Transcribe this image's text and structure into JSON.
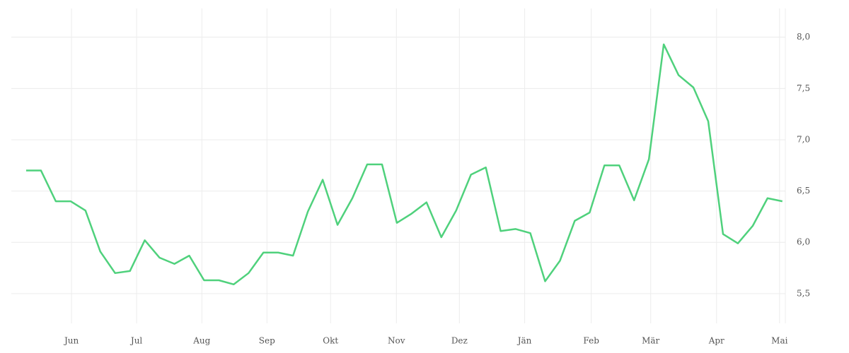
{
  "chart_data": {
    "type": "line",
    "x": [
      0,
      1,
      2,
      3,
      4,
      5,
      6,
      7,
      8,
      9,
      10,
      11,
      12,
      13,
      14,
      15,
      16,
      17,
      18,
      19,
      20,
      21,
      22,
      23,
      24,
      25,
      26,
      27,
      28,
      29,
      30,
      31,
      32,
      33,
      34,
      35,
      36,
      37,
      38,
      39,
      40,
      41,
      42,
      43,
      44,
      45,
      46,
      47,
      48,
      49,
      50,
      51
    ],
    "series": [
      {
        "color": "#4fd17c",
        "values": [
          6.7,
          6.7,
          6.4,
          6.4,
          6.31,
          5.91,
          5.7,
          5.72,
          6.02,
          5.85,
          5.79,
          5.87,
          5.63,
          5.63,
          5.59,
          5.7,
          5.9,
          5.9,
          5.87,
          6.3,
          6.61,
          6.17,
          6.43,
          6.76,
          6.76,
          6.19,
          6.28,
          6.39,
          6.05,
          6.31,
          6.66,
          6.73,
          6.11,
          6.13,
          6.09,
          5.62,
          5.82,
          6.21,
          6.29,
          6.75,
          6.75,
          6.41,
          6.81,
          7.93,
          7.63,
          7.51,
          7.18,
          6.08,
          5.99,
          6.16,
          6.43,
          6.4
        ]
      }
    ],
    "xlim": [
      -1.0,
      51.2
    ],
    "xticks": [
      {
        "value": 3.06,
        "label": "Jun"
      },
      {
        "value": 7.45,
        "label": "Jul"
      },
      {
        "value": 11.85,
        "label": "Aug"
      },
      {
        "value": 16.24,
        "label": "Sep"
      },
      {
        "value": 20.53,
        "label": "Okt"
      },
      {
        "value": 24.97,
        "label": "Nov"
      },
      {
        "value": 29.22,
        "label": "Dez"
      },
      {
        "value": 33.62,
        "label": "Jän"
      },
      {
        "value": 38.11,
        "label": "Feb"
      },
      {
        "value": 42.12,
        "label": "Mär"
      },
      {
        "value": 46.56,
        "label": "Apr"
      },
      {
        "value": 50.81,
        "label": "Mai"
      }
    ],
    "ylim": [
      5.21,
      8.28
    ],
    "yticks": [
      {
        "value": 5.5,
        "label": "5,5"
      },
      {
        "value": 6.0,
        "label": "6,0"
      },
      {
        "value": 6.5,
        "label": "6,5"
      },
      {
        "value": 7.0,
        "label": "7,0"
      },
      {
        "value": 7.5,
        "label": "7,5"
      },
      {
        "value": 8.0,
        "label": "8,0"
      }
    ],
    "grid": true
  }
}
